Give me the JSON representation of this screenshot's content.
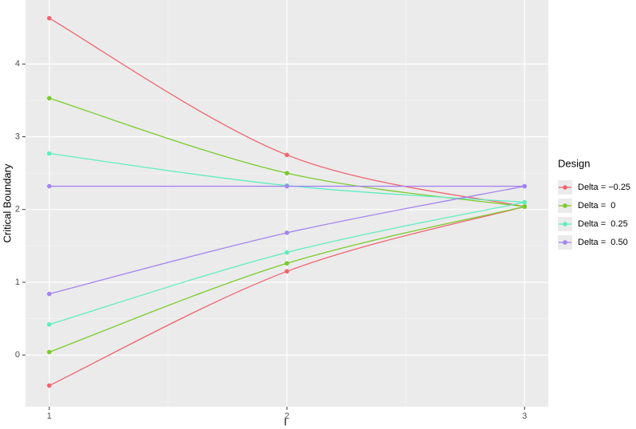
{
  "chart_data": {
    "type": "line",
    "x_label": "I",
    "y_label": "Critical Boundary",
    "legend_title": "Design",
    "x": [
      1,
      2,
      3
    ],
    "xlim": [
      0.9,
      3.1
    ],
    "xticks": [
      1,
      2,
      3
    ],
    "ylim": [
      -0.71,
      4.88
    ],
    "yticks": [
      0,
      1,
      2,
      3,
      4
    ],
    "grid": true,
    "legend_position": "right",
    "series": [
      {
        "name": "Delta = −0.25",
        "color": "#F0646F",
        "upper": [
          4.63,
          2.75,
          2.04
        ],
        "lower": [
          -0.42,
          1.15,
          2.04
        ]
      },
      {
        "name": "Delta =  0",
        "color": "#7ACB2A",
        "upper": [
          3.53,
          2.5,
          2.04
        ],
        "lower": [
          0.04,
          1.26,
          2.04
        ]
      },
      {
        "name": "Delta =  0.25",
        "color": "#5EEDC0",
        "upper": [
          2.77,
          2.33,
          2.1
        ],
        "lower": [
          0.42,
          1.41,
          2.1
        ]
      },
      {
        "name": "Delta =  0.50",
        "color": "#A583EE",
        "upper": [
          2.32,
          2.32,
          2.32
        ],
        "lower": [
          0.84,
          1.68,
          2.32
        ]
      }
    ]
  }
}
